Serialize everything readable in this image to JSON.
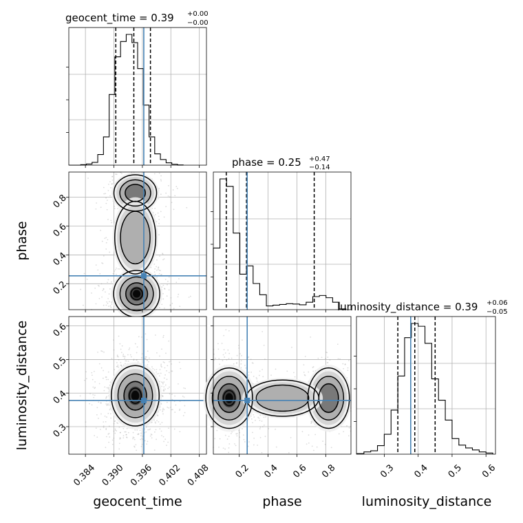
{
  "chart_data": {
    "type": "corner",
    "parameters": [
      "geocent_time",
      "phase",
      "luminosity_distance"
    ],
    "truth": {
      "geocent_time": 0.3963,
      "phase": 0.255,
      "luminosity_distance": 0.378
    },
    "colors": {
      "truth": "#4682b4",
      "lines": "#000000",
      "grid": "#b0b0b0"
    },
    "titles": {
      "geocent_time": {
        "name": "geocent_time",
        "value": "0.39",
        "plus": "+0.00",
        "minus": "−0.00"
      },
      "phase": {
        "name": "phase",
        "value": "0.25",
        "plus": "+0.47",
        "minus": "−0.14"
      },
      "luminosity_distance": {
        "name": "luminosity_distance",
        "value": "0.39",
        "plus": "+0.06",
        "minus": "−0.05"
      }
    },
    "axes": {
      "geocent_time": {
        "range": [
          0.3805,
          0.4095
        ],
        "ticks": [
          0.384,
          0.39,
          0.396,
          0.402,
          0.408
        ],
        "tick_labels": [
          "0.384",
          "0.390",
          "0.396",
          "0.402",
          "0.408"
        ]
      },
      "phase": {
        "range": [
          0.02,
          0.975
        ],
        "ticks": [
          0.2,
          0.4,
          0.6,
          0.8
        ],
        "tick_labels": [
          "0.2",
          "0.4",
          "0.6",
          "0.8"
        ]
      },
      "luminosity_distance": {
        "range": [
          0.218,
          0.628
        ],
        "ticks": [
          0.3,
          0.4,
          0.5,
          0.6
        ],
        "tick_labels": [
          "0.3",
          "0.4",
          "0.5",
          "0.6"
        ]
      }
    },
    "histograms": {
      "geocent_time": {
        "bin_edges": [
          0.3806,
          0.3818,
          0.383,
          0.3842,
          0.3854,
          0.3866,
          0.3878,
          0.389,
          0.3902,
          0.3914,
          0.3926,
          0.3938,
          0.395,
          0.3962,
          0.3974,
          0.3986,
          0.3998,
          0.401,
          0.4022,
          0.4034,
          0.4046
        ],
        "counts": [
          0,
          0,
          2,
          5,
          12,
          45,
          120,
          300,
          460,
          525,
          555,
          520,
          410,
          255,
          120,
          48,
          24,
          10,
          4,
          1
        ],
        "quantiles": [
          0.3904,
          0.3942,
          0.3977
        ]
      },
      "phase": {
        "bin_edges": [
          0.02,
          0.066,
          0.112,
          0.158,
          0.204,
          0.25,
          0.296,
          0.342,
          0.388,
          0.434,
          0.48,
          0.526,
          0.572,
          0.618,
          0.664,
          0.71,
          0.756,
          0.802,
          0.848,
          0.894,
          0.94
        ],
        "counts": [
          165,
          350,
          330,
          205,
          95,
          117,
          70,
          40,
          10,
          12,
          14,
          16,
          15,
          13,
          20,
          35,
          38,
          32,
          20,
          2
        ],
        "quantiles": [
          0.11,
          0.25,
          0.72
        ]
      },
      "luminosity_distance": {
        "bin_edges": [
          0.22,
          0.24,
          0.26,
          0.28,
          0.3,
          0.32,
          0.34,
          0.36,
          0.38,
          0.4,
          0.42,
          0.44,
          0.46,
          0.48,
          0.5,
          0.52,
          0.54,
          0.56,
          0.58,
          0.6,
          0.62
        ],
        "counts": [
          2,
          8,
          12,
          30,
          70,
          155,
          275,
          410,
          460,
          450,
          390,
          265,
          190,
          120,
          55,
          32,
          22,
          15,
          8,
          4
        ],
        "quantiles": [
          0.34,
          0.39,
          0.45
        ]
      }
    },
    "density": {
      "phase_vs_geocent_time": {
        "blobs": [
          {
            "x": 0.3948,
            "y": 0.13,
            "sx": 0.0027,
            "sy": 0.09,
            "w": 1.0
          },
          {
            "x": 0.3945,
            "y": 0.83,
            "sx": 0.0025,
            "sy": 0.07,
            "w": 0.45
          },
          {
            "x": 0.3945,
            "y": 0.52,
            "sx": 0.0024,
            "sy": 0.14,
            "w": 0.25
          }
        ]
      },
      "luminosity_distance_vs_geocent_time": {
        "blobs": [
          {
            "x": 0.3945,
            "y": 0.392,
            "sx": 0.0028,
            "sy": 0.05,
            "w": 1.0
          }
        ]
      },
      "luminosity_distance_vs_phase": {
        "blobs": [
          {
            "x": 0.13,
            "y": 0.385,
            "sx": 0.09,
            "sy": 0.05,
            "w": 1.0
          },
          {
            "x": 0.82,
            "y": 0.385,
            "sx": 0.08,
            "sy": 0.05,
            "w": 0.45
          },
          {
            "x": 0.5,
            "y": 0.385,
            "sx": 0.14,
            "sy": 0.03,
            "w": 0.15
          }
        ]
      }
    }
  }
}
